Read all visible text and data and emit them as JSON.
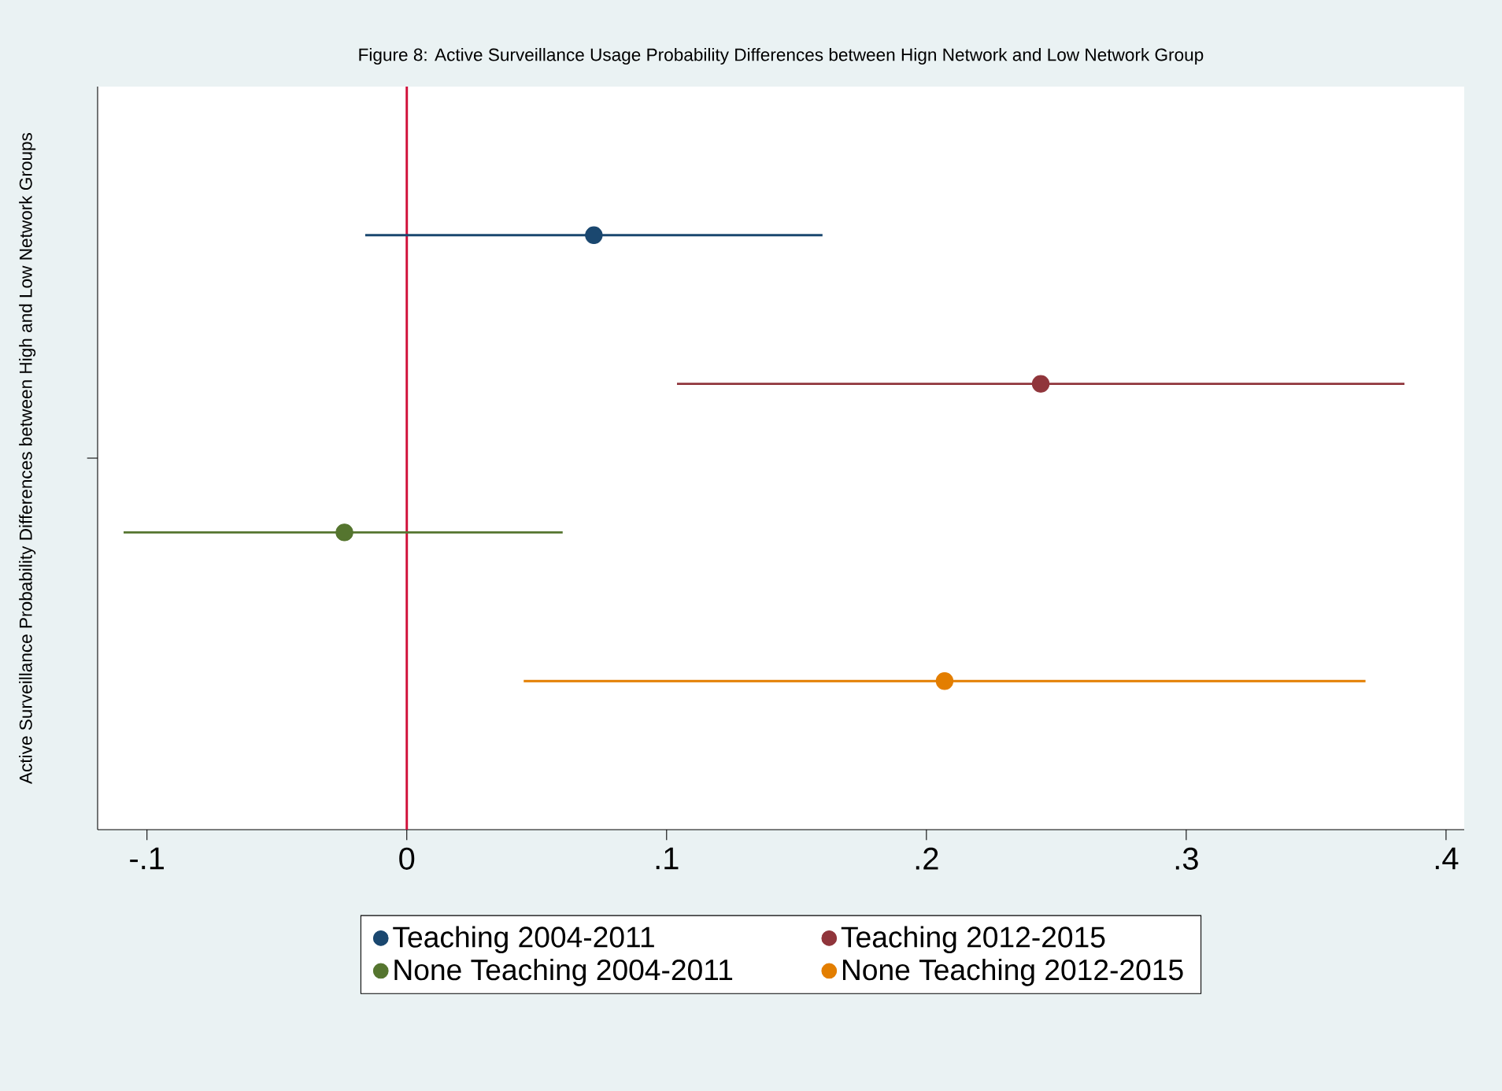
{
  "chart_data": {
    "type": "scatter",
    "orientation": "horizontal",
    "title": "Figure 8: Active Surveillance Usage Probability Differences between Hign Network and Low Network Group",
    "ylabel": "Active Surveillance Probability Differences between High and Low Network Groups",
    "categories": [
      null,
      null,
      null,
      null
    ],
    "series": [
      {
        "name": "Teaching 2004-2011",
        "color": "#1a476f",
        "values": [
          0.072,
          null,
          null,
          null
        ],
        "errors": [
          [
            -0.016,
            0.16
          ],
          null,
          null,
          null
        ]
      },
      {
        "name": "Teaching 2012-2015",
        "color": "#90353b",
        "values": [
          null,
          0.244,
          null,
          null
        ],
        "errors": [
          null,
          [
            0.104,
            0.384
          ],
          null,
          null
        ]
      },
      {
        "name": "None Teaching 2004-2011",
        "color": "#55752f",
        "values": [
          null,
          null,
          -0.024,
          null
        ],
        "errors": [
          null,
          null,
          [
            -0.109,
            0.06
          ],
          null
        ]
      },
      {
        "name": "None Teaching 2012-2015",
        "color": "#e37e00",
        "values": [
          null,
          null,
          null,
          0.207
        ],
        "errors": [
          null,
          null,
          null,
          [
            0.045,
            0.369
          ]
        ]
      }
    ],
    "xlim": [
      -0.119,
      0.407
    ],
    "xticks": [
      {
        "value": -0.1,
        "label": "-.1"
      },
      0,
      {
        "value": 0.1,
        "label": ".1"
      },
      {
        "value": 0.2,
        "label": ".2"
      },
      {
        "value": 0.3,
        "label": ".3"
      },
      {
        "value": 0.4,
        "label": ".4"
      }
    ],
    "ref_lines": [
      {
        "axis": "x",
        "value": 0,
        "color": "#d0103a"
      }
    ],
    "legend": "bottom",
    "grid": false,
    "marker": "circle",
    "tick_labels": "x"
  }
}
